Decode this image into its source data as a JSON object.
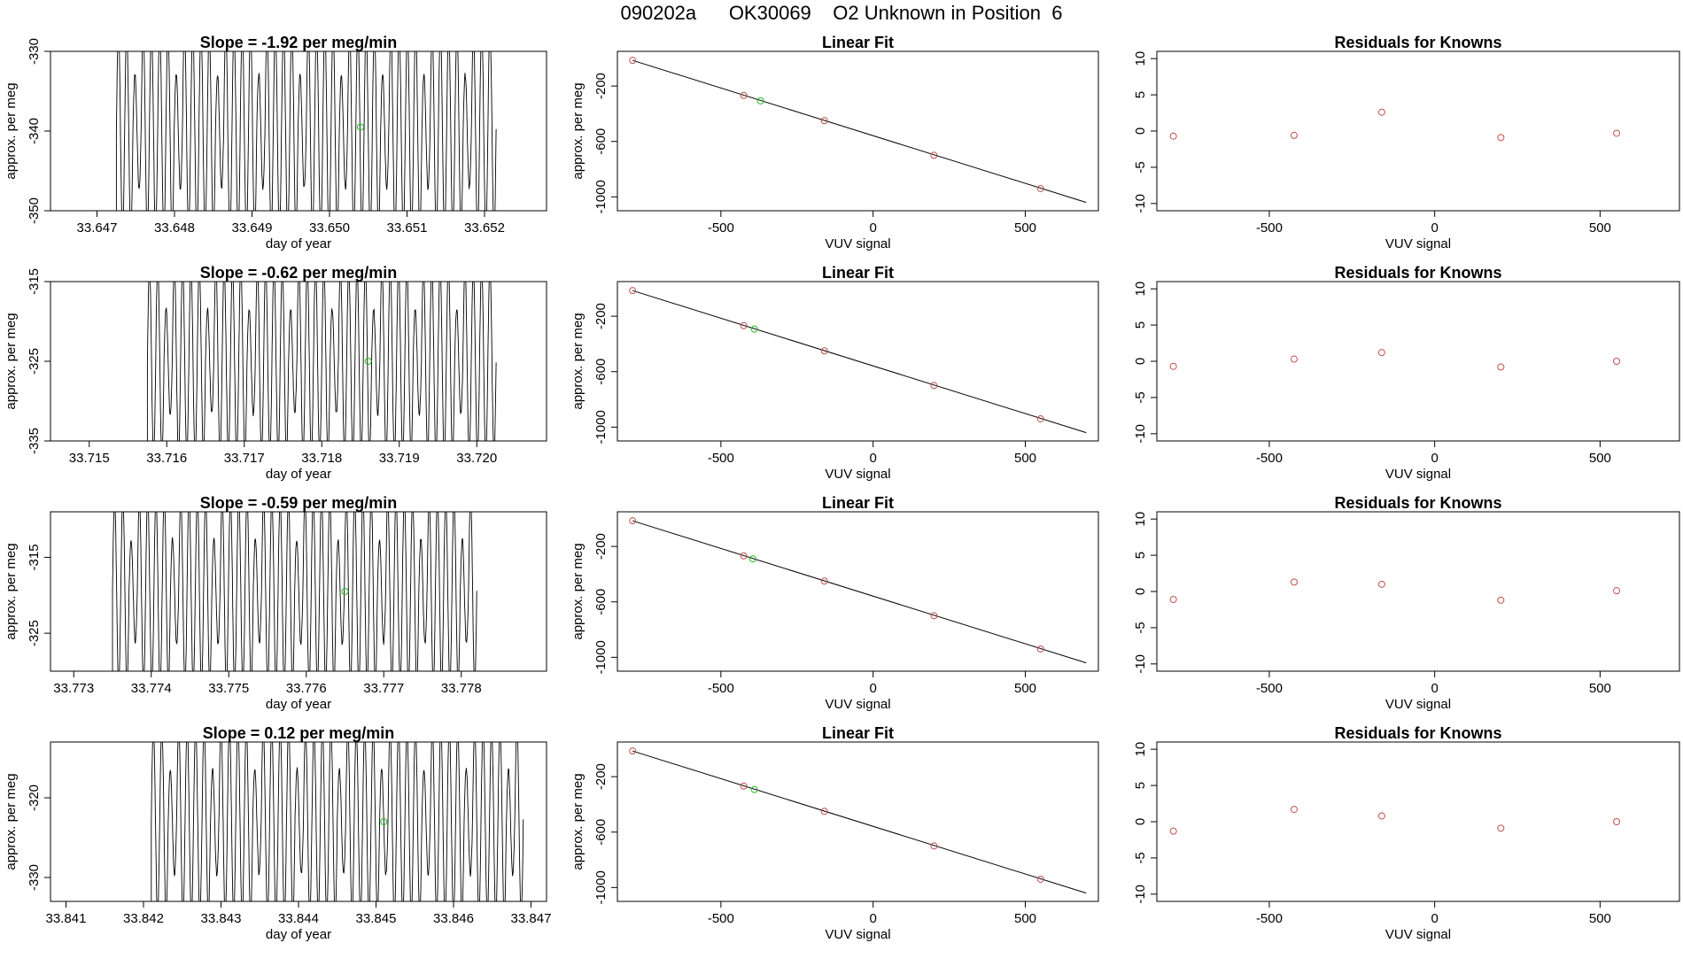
{
  "page": {
    "title": "090202a      OK30069    O2 Unknown in Position  6"
  },
  "colors": {
    "line": "#000000",
    "known": "#c0504d",
    "unknown": "#22bb22",
    "trace_grey": "#aaaaaa"
  },
  "chart_data": [
    {
      "type": "line",
      "row": 1,
      "title": "Slope =  -1.92  per meg/min",
      "xlabel": "day of year",
      "ylabel": "approx. per meg",
      "xlim": [
        33.6464,
        33.6528
      ],
      "ylim": [
        -350,
        -330
      ],
      "xticks": [
        "33.647",
        "33.648",
        "33.649",
        "33.650",
        "33.651",
        "33.652"
      ],
      "yticks": [
        "-330",
        "-340",
        "-350"
      ],
      "trace": {
        "start": 33.64725,
        "end": 33.65215,
        "cycles": 46,
        "low": -353,
        "high": -327
      },
      "unknown_point": {
        "x": 33.6504,
        "y": -339.5
      }
    },
    {
      "type": "scatter",
      "row": 1,
      "title": "Linear Fit",
      "xlabel": "VUV signal",
      "ylabel": "approx. per meg",
      "xlim": [
        -840,
        740
      ],
      "ylim": [
        -1100,
        50
      ],
      "xticks": [
        "-500",
        "0",
        "500"
      ],
      "yticks": [
        "-200",
        "-600",
        "-1000"
      ],
      "fit_line": {
        "x": [
          -790,
          700
        ],
        "y": [
          -15,
          -1040
        ]
      },
      "knowns": {
        "x": [
          -790,
          -425,
          -160,
          200,
          550
        ],
        "y": [
          -15,
          -268,
          -450,
          -700,
          -940
        ]
      },
      "unknown": {
        "x": [
          -370
        ],
        "y": [
          -307
        ]
      }
    },
    {
      "type": "scatter",
      "row": 1,
      "title": "Residuals for Knowns",
      "xlabel": "VUV signal",
      "ylabel": "",
      "xlim": [
        -840,
        740
      ],
      "ylim": [
        -11,
        11
      ],
      "xticks": [
        "-500",
        "0",
        "500"
      ],
      "yticks": [
        "10",
        "5",
        "0",
        "-5",
        "-10"
      ],
      "x": [
        -790,
        -425,
        -160,
        200,
        550
      ],
      "y": [
        -0.7,
        -0.6,
        2.6,
        -0.9,
        -0.3
      ]
    },
    {
      "type": "line",
      "row": 2,
      "title": "Slope =  -0.62  per meg/min",
      "xlabel": "day of year",
      "ylabel": "approx. per meg",
      "xlim": [
        33.7145,
        33.7209
      ],
      "ylim": [
        -335,
        -315
      ],
      "xticks": [
        "33.715",
        "33.716",
        "33.717",
        "33.718",
        "33.719",
        "33.720"
      ],
      "yticks": [
        "-315",
        "-325",
        "-335"
      ],
      "trace": {
        "start": 33.71575,
        "end": 33.72025,
        "cycles": 42,
        "low": -337,
        "high": -313
      },
      "unknown_point": {
        "x": 33.7186,
        "y": -325
      }
    },
    {
      "type": "scatter",
      "row": 2,
      "title": "Linear Fit",
      "xlabel": "VUV signal",
      "ylabel": "approx. per meg",
      "xlim": [
        -840,
        740
      ],
      "ylim": [
        -1100,
        50
      ],
      "xticks": [
        "-500",
        "0",
        "500"
      ],
      "yticks": [
        "-200",
        "-600",
        "-1000"
      ],
      "fit_line": {
        "x": [
          -790,
          700
        ],
        "y": [
          -15,
          -1040
        ]
      },
      "knowns": {
        "x": [
          -790,
          -425,
          -160,
          200,
          550
        ],
        "y": [
          -15,
          -268,
          -450,
          -700,
          -940
        ]
      },
      "unknown": {
        "x": [
          -390
        ],
        "y": [
          -293
        ]
      }
    },
    {
      "type": "scatter",
      "row": 2,
      "title": "Residuals for Knowns",
      "xlabel": "VUV signal",
      "ylabel": "",
      "xlim": [
        -840,
        740
      ],
      "ylim": [
        -11,
        11
      ],
      "xticks": [
        "-500",
        "0",
        "500"
      ],
      "yticks": [
        "10",
        "5",
        "0",
        "-5",
        "-10"
      ],
      "x": [
        -790,
        -425,
        -160,
        200,
        550
      ],
      "y": [
        -0.7,
        0.3,
        1.2,
        -0.8,
        0.0
      ]
    },
    {
      "type": "line",
      "row": 3,
      "title": "Slope =  -0.59  per meg/min",
      "xlabel": "day of year",
      "ylabel": "approx. per meg",
      "xlim": [
        33.7727,
        33.7791
      ],
      "ylim": [
        -330,
        -309
      ],
      "xticks": [
        "33.773",
        "33.774",
        "33.775",
        "33.776",
        "33.777",
        "33.778"
      ],
      "yticks": [
        "-315",
        "-325"
      ],
      "trace": {
        "start": 33.7735,
        "end": 33.7782,
        "cycles": 44,
        "low": -332,
        "high": -307
      },
      "unknown_point": {
        "x": 33.7765,
        "y": -319.5
      }
    },
    {
      "type": "scatter",
      "row": 3,
      "title": "Linear Fit",
      "xlabel": "VUV signal",
      "ylabel": "approx. per meg",
      "xlim": [
        -840,
        740
      ],
      "ylim": [
        -1100,
        50
      ],
      "xticks": [
        "-500",
        "0",
        "500"
      ],
      "yticks": [
        "-200",
        "-600",
        "-1000"
      ],
      "fit_line": {
        "x": [
          -790,
          700
        ],
        "y": [
          -15,
          -1040
        ]
      },
      "knowns": {
        "x": [
          -790,
          -425,
          -160,
          200,
          550
        ],
        "y": [
          -15,
          -268,
          -450,
          -700,
          -940
        ]
      },
      "unknown": {
        "x": [
          -395
        ],
        "y": [
          -290
        ]
      }
    },
    {
      "type": "scatter",
      "row": 3,
      "title": "Residuals for Knowns",
      "xlabel": "VUV signal",
      "ylabel": "",
      "xlim": [
        -840,
        740
      ],
      "ylim": [
        -11,
        11
      ],
      "xticks": [
        "-500",
        "0",
        "500"
      ],
      "yticks": [
        "10",
        "5",
        "0",
        "-5",
        "-10"
      ],
      "x": [
        -790,
        -425,
        -160,
        200,
        550
      ],
      "y": [
        -1.1,
        1.3,
        1.0,
        -1.2,
        0.1
      ]
    },
    {
      "type": "line",
      "row": 4,
      "title": "Slope =  0.12  per meg/min",
      "xlabel": "day of year",
      "ylabel": "approx. per meg",
      "xlim": [
        33.8408,
        33.8472
      ],
      "ylim": [
        -333,
        -313
      ],
      "xticks": [
        "33.841",
        "33.842",
        "33.843",
        "33.844",
        "33.845",
        "33.846",
        "33.847"
      ],
      "yticks": [
        "-320",
        "-330"
      ],
      "trace": {
        "start": 33.8421,
        "end": 33.8469,
        "cycles": 44,
        "low": -335,
        "high": -311
      },
      "unknown_point": {
        "x": 33.8451,
        "y": -323
      }
    },
    {
      "type": "scatter",
      "row": 4,
      "title": "Linear Fit",
      "xlabel": "VUV signal",
      "ylabel": "approx. per meg",
      "xlim": [
        -840,
        740
      ],
      "ylim": [
        -1100,
        50
      ],
      "xticks": [
        "-500",
        "0",
        "500"
      ],
      "yticks": [
        "-200",
        "-600",
        "-1000"
      ],
      "fit_line": {
        "x": [
          -790,
          700
        ],
        "y": [
          -15,
          -1040
        ]
      },
      "knowns": {
        "x": [
          -790,
          -425,
          -160,
          200,
          550
        ],
        "y": [
          -15,
          -268,
          -450,
          -700,
          -940
        ]
      },
      "unknown": {
        "x": [
          -390
        ],
        "y": [
          -293
        ]
      }
    },
    {
      "type": "scatter",
      "row": 4,
      "title": "Residuals for Knowns",
      "xlabel": "VUV signal",
      "ylabel": "",
      "xlim": [
        -840,
        740
      ],
      "ylim": [
        -11,
        11
      ],
      "xticks": [
        "-500",
        "0",
        "500"
      ],
      "yticks": [
        "10",
        "5",
        "0",
        "-5",
        "-10"
      ],
      "x": [
        -790,
        -425,
        -160,
        200,
        550
      ],
      "y": [
        -1.3,
        1.7,
        0.8,
        -0.9,
        0.0
      ]
    }
  ]
}
